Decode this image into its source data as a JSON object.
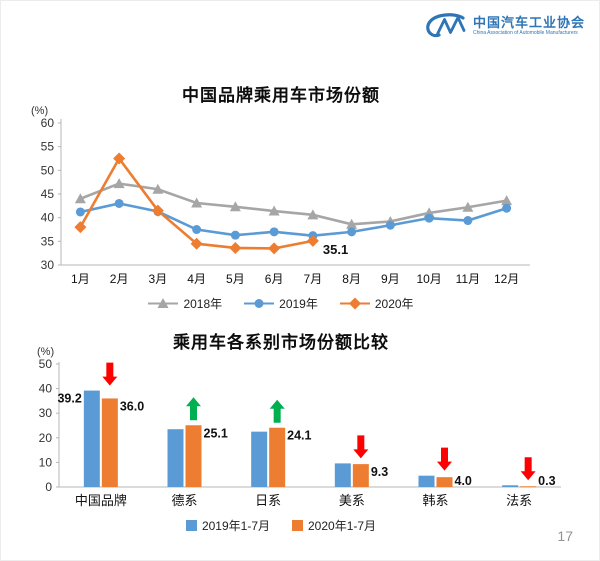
{
  "page": {
    "logo": {
      "mark": "CM",
      "org_zh": "中国汽车工业协会",
      "org_en": "China Association of Automobile Manufacturers",
      "color": "#2e75b6"
    },
    "page_number": "17"
  },
  "chart_data": [
    {
      "type": "line",
      "title": "中国品牌乘用车市场份额",
      "ylabel": "(%)",
      "xlabel": "",
      "ylim": [
        30,
        60
      ],
      "yticks": [
        30,
        35,
        40,
        45,
        50,
        55,
        60
      ],
      "grid": false,
      "legend_position": "bottom",
      "categories": [
        "1月",
        "2月",
        "3月",
        "4月",
        "5月",
        "6月",
        "7月",
        "8月",
        "9月",
        "10月",
        "11月",
        "12月"
      ],
      "series": [
        {
          "name": "2018年",
          "color": "#a6a6a6",
          "marker": "triangle",
          "values": [
            44.0,
            47.2,
            46.0,
            43.1,
            42.3,
            41.4,
            40.6,
            38.6,
            39.2,
            41.0,
            42.2,
            43.6
          ]
        },
        {
          "name": "2019年",
          "color": "#5b9bd5",
          "marker": "circle",
          "values": [
            41.2,
            43.0,
            41.3,
            37.5,
            36.3,
            37.0,
            36.2,
            37.0,
            38.4,
            39.9,
            39.4,
            42.0
          ]
        },
        {
          "name": "2020年",
          "color": "#ed7d31",
          "marker": "diamond",
          "values": [
            38.0,
            52.5,
            41.5,
            34.5,
            33.6,
            33.5,
            35.1
          ]
        }
      ],
      "annotation": {
        "text": "35.1",
        "series": "2020年",
        "index": 6
      }
    },
    {
      "type": "bar",
      "title": "乘用车各系别市场份额比较",
      "ylabel": "(%)",
      "xlabel": "",
      "ylim": [
        0,
        50
      ],
      "yticks": [
        0,
        10,
        20,
        30,
        40,
        50
      ],
      "grid": false,
      "legend_position": "bottom",
      "categories": [
        "中国品牌",
        "德系",
        "日系",
        "美系",
        "韩系",
        "法系"
      ],
      "series": [
        {
          "name": "2019年1-7月",
          "color": "#5b9bd5",
          "values": [
            39.2,
            23.5,
            22.5,
            9.6,
            4.6,
            0.7
          ],
          "labels": [
            "39.2",
            null,
            null,
            null,
            null,
            null
          ]
        },
        {
          "name": "2020年1-7月",
          "color": "#ed7d31",
          "values": [
            36.0,
            25.1,
            24.1,
            9.3,
            4.0,
            0.3
          ],
          "labels": [
            "36.0",
            "25.1",
            "24.1",
            "9.3",
            "4.0",
            "0.3"
          ]
        }
      ],
      "trend_arrows": [
        "down",
        "up",
        "up",
        "down",
        "down",
        "down"
      ],
      "arrow_colors": {
        "up": "#00b050",
        "down": "#ff0000"
      }
    }
  ]
}
